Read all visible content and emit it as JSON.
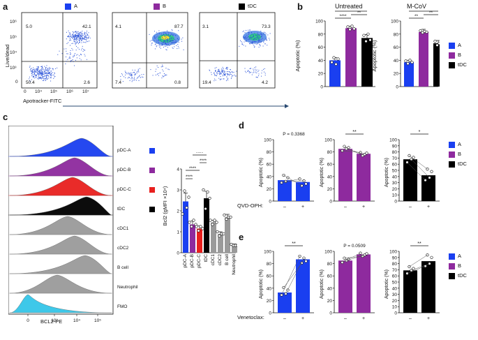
{
  "panel_labels": {
    "a": "a",
    "b": "b",
    "c": "c",
    "d": "d",
    "e": "e"
  },
  "colors": {
    "A": "#1a3ff0",
    "B": "#8e2a9e",
    "tDC": "#000000",
    "pdcC": "#e8201e",
    "grey": "#9a9a9a",
    "fmo": "#34c6e8"
  },
  "panel_a": {
    "groups": [
      "A",
      "B",
      "tDC"
    ],
    "y_axis_label": "Live/dead",
    "x_axis_label": "Apotracker-FITC",
    "y_ticks": [
      "10⁶",
      "10⁵",
      "10⁴",
      "10³",
      "0"
    ],
    "x_ticks": [
      "0",
      "10⁴",
      "10⁵",
      "10⁶",
      "10⁷"
    ],
    "quadrants": [
      {
        "ul": "5.0",
        "ur": "42.1",
        "ll": "50.4",
        "lr": "2.6"
      },
      {
        "ul": "4.1",
        "ur": "87.7",
        "ll": "7.4",
        "lr": "0.8"
      },
      {
        "ul": "3.1",
        "ur": "73.3",
        "ll": "19.4",
        "lr": "4.2"
      }
    ]
  },
  "panel_b": {
    "ylabel": "Apoptotic (%)",
    "legend": [
      "A",
      "B",
      "tDC"
    ],
    "charts": [
      {
        "title": "Untreated",
        "ylim": [
          0,
          100
        ],
        "yticks": [
          "0",
          "20",
          "40",
          "60",
          "80",
          "100"
        ],
        "categories": [
          "A",
          "B",
          "tDC"
        ],
        "values": [
          40,
          89,
          74
        ],
        "sig": [
          "****",
          "****",
          "**"
        ]
      },
      {
        "title": "M-CoV",
        "ylim": [
          0,
          100
        ],
        "yticks": [
          "0",
          "20",
          "40",
          "60",
          "80",
          "100"
        ],
        "categories": [
          "A",
          "B",
          "tDC"
        ],
        "values": [
          37,
          83,
          66
        ],
        "sig": [
          "**",
          "**",
          "**"
        ]
      }
    ]
  },
  "panel_c": {
    "hist_labels": [
      "pDC-A",
      "pDC-B",
      "pDC-C",
      "tDC",
      "cDC1",
      "cDC2",
      "B cell",
      "Neutrophil",
      "FMO"
    ],
    "hist_xlabel": "BCL2-PE",
    "hist_xticks": [
      "0",
      "10³",
      "10⁴",
      "10⁵"
    ],
    "bar_ylabel": "Bcl2 (gMFI ×10⁴)",
    "bar_yticks": [
      "0",
      "1",
      "2",
      "3",
      "4"
    ],
    "bar_categories": [
      "pDC-A",
      "pDC-B",
      "pDC-C",
      "tDC",
      "cDC1",
      "cDC2",
      "B cell",
      "Neutrophil"
    ],
    "bar_values": [
      2.45,
      1.35,
      1.15,
      2.6,
      1.45,
      0.9,
      1.7,
      0.35
    ],
    "sig": [
      "****",
      "****",
      "****",
      "****"
    ]
  },
  "panel_d": {
    "ylabel": "Apoptotic (%)",
    "treatment_label": "QVD-OPH:",
    "xticks": [
      "–",
      "+"
    ],
    "legend": [
      "A",
      "B",
      "tDC"
    ],
    "charts": [
      {
        "ylim": [
          0,
          100
        ],
        "yticks": [
          "0",
          "20",
          "40",
          "60",
          "80",
          "100"
        ],
        "values": [
          34,
          31
        ],
        "annotation": "P = 0.3368"
      },
      {
        "ylim": [
          0,
          100
        ],
        "yticks": [
          "0",
          "20",
          "40",
          "60",
          "80",
          "100"
        ],
        "values": [
          85,
          77
        ],
        "annotation": "**"
      },
      {
        "ylim": [
          0,
          100
        ],
        "yticks": [
          "0",
          "10",
          "20",
          "30",
          "40",
          "50",
          "60",
          "70",
          "80",
          "90",
          "100"
        ],
        "values": [
          68,
          42
        ],
        "annotation": "*"
      }
    ]
  },
  "panel_e": {
    "ylabel": "Apoptotic (%)",
    "treatment_label": "Venetoclax:",
    "xticks": [
      "–",
      "+"
    ],
    "legend": [
      "A",
      "B",
      "tDC"
    ],
    "charts": [
      {
        "ylim": [
          0,
          100
        ],
        "yticks": [
          "0",
          "20",
          "40",
          "60",
          "80",
          "100"
        ],
        "values": [
          33,
          87
        ],
        "annotation": "**"
      },
      {
        "ylim": [
          0,
          100
        ],
        "yticks": [
          "0",
          "20",
          "40",
          "60",
          "80",
          "100"
        ],
        "values": [
          85,
          95
        ],
        "annotation": "P = 0.0509"
      },
      {
        "ylim": [
          0,
          100
        ],
        "yticks": [
          "0",
          "10",
          "20",
          "30",
          "40",
          "50",
          "60",
          "70",
          "80",
          "90",
          "100"
        ],
        "values": [
          69,
          84
        ],
        "annotation": "**"
      }
    ]
  },
  "chart_data": [
    {
      "type": "bar",
      "title": "Untreated",
      "categories": [
        "A",
        "B",
        "tDC"
      ],
      "values": [
        40,
        89,
        74
      ],
      "ylabel": "Apoptotic (%)",
      "ylim": [
        0,
        100
      ]
    },
    {
      "type": "bar",
      "title": "M-CoV",
      "categories": [
        "A",
        "B",
        "tDC"
      ],
      "values": [
        37,
        83,
        66
      ],
      "ylabel": "Apoptotic (%)",
      "ylim": [
        0,
        100
      ]
    },
    {
      "type": "bar",
      "title": "Bcl2",
      "categories": [
        "pDC-A",
        "pDC-B",
        "pDC-C",
        "tDC",
        "cDC1",
        "cDC2",
        "B cell",
        "Neutrophil"
      ],
      "values": [
        2.45,
        1.35,
        1.15,
        2.6,
        1.45,
        0.9,
        1.7,
        0.35
      ],
      "ylabel": "Bcl2 (gMFI ×10⁴)",
      "ylim": [
        0,
        4
      ]
    },
    {
      "type": "bar",
      "title": "QVD-OPH A",
      "categories": [
        "–",
        "+"
      ],
      "values": [
        34,
        31
      ],
      "ylim": [
        0,
        100
      ]
    },
    {
      "type": "bar",
      "title": "QVD-OPH B",
      "categories": [
        "–",
        "+"
      ],
      "values": [
        85,
        77
      ],
      "ylim": [
        0,
        100
      ]
    },
    {
      "type": "bar",
      "title": "QVD-OPH tDC",
      "categories": [
        "–",
        "+"
      ],
      "values": [
        68,
        42
      ],
      "ylim": [
        0,
        100
      ]
    },
    {
      "type": "bar",
      "title": "Venetoclax A",
      "categories": [
        "–",
        "+"
      ],
      "values": [
        33,
        87
      ],
      "ylim": [
        0,
        100
      ]
    },
    {
      "type": "bar",
      "title": "Venetoclax B",
      "categories": [
        "–",
        "+"
      ],
      "values": [
        85,
        95
      ],
      "ylim": [
        0,
        100
      ]
    },
    {
      "type": "bar",
      "title": "Venetoclax tDC",
      "categories": [
        "–",
        "+"
      ],
      "values": [
        69,
        84
      ],
      "ylim": [
        0,
        100
      ]
    }
  ]
}
